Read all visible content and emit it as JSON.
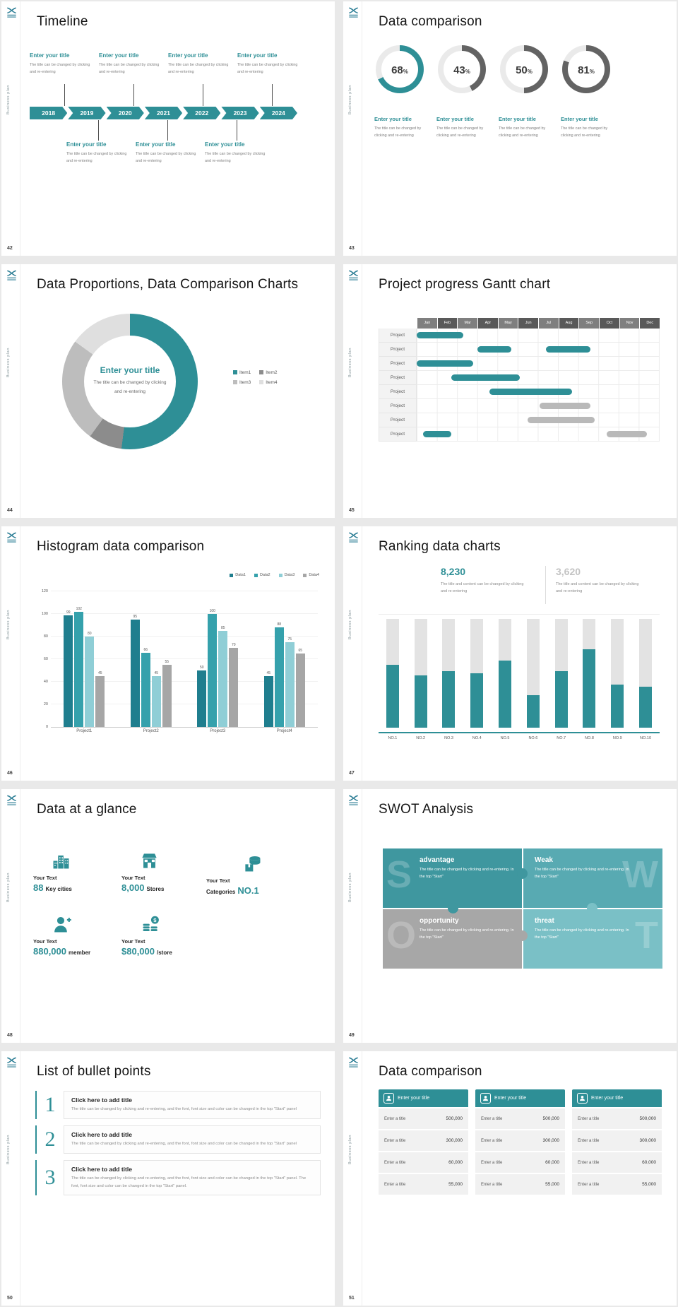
{
  "page": {
    "background": "#e9e9e9",
    "accent": "#2e8f96"
  },
  "branding": {
    "sidebar_text": "Business plan"
  },
  "common": {
    "entry_title": "Enter your title",
    "entry_body": "The title can be changed by clicking and re-entering"
  },
  "slides": [
    {
      "number": "42",
      "title": "Timeline",
      "years": [
        "2018",
        "2019",
        "2020",
        "2021",
        "2022",
        "2023",
        "2024"
      ],
      "top_entries": [
        {
          "title": "Enter your title",
          "body": "The title can be changed by clicking and re-entering"
        },
        {
          "title": "Enter your title",
          "body": "The title can be changed by clicking and re-entering"
        },
        {
          "title": "Enter your title",
          "body": "The title can be changed by clicking and re-entering"
        },
        {
          "title": "Enter your title",
          "body": "The title can be changed by clicking and re-entering"
        }
      ],
      "bottom_entries": [
        {
          "title": "Enter your title",
          "body": "The title can be changed by clicking and re-entering"
        },
        {
          "title": "Enter your title",
          "body": "The title can be changed by clicking and re-entering"
        },
        {
          "title": "Enter your title",
          "body": "The title can be changed by clicking and re-entering"
        }
      ]
    },
    {
      "number": "43",
      "title": "Data comparison",
      "stats": [
        {
          "percent": 68,
          "color": "#2e8f96",
          "title": "Enter your title",
          "body": "The title can be changed by clicking and re-entering"
        },
        {
          "percent": 43,
          "color": "#636363",
          "title": "Enter your title",
          "body": "The title can be changed by clicking and re-entering"
        },
        {
          "percent": 50,
          "color": "#636363",
          "title": "Enter your title",
          "body": "The title can be changed by clicking and re-entering"
        },
        {
          "percent": 81,
          "color": "#636363",
          "title": "Enter your title",
          "body": "The title can be changed by clicking and re-entering"
        }
      ]
    },
    {
      "number": "44",
      "title": "Data Proportions, Data Comparison Charts",
      "center_title": "Enter your title",
      "center_body": "The title can be changed by clicking and re-entering",
      "chart_data": {
        "type": "pie",
        "labels": [
          "Item1",
          "Item2",
          "Item3",
          "Item4"
        ],
        "values": [
          52,
          8,
          25,
          15
        ],
        "colors": [
          "#2e8f96",
          "#8c8c8c",
          "#bdbdbd",
          "#dfdfdf"
        ],
        "legend_position": "right"
      }
    },
    {
      "number": "45",
      "title": "Project progress Gantt chart",
      "chart_data": {
        "type": "gantt",
        "months": [
          "Jan",
          "Feb",
          "Mar",
          "Apr",
          "May",
          "Jun",
          "Jul",
          "Aug",
          "Sep",
          "Oct",
          "Nov",
          "Dec"
        ],
        "row_label": "Project",
        "rows": [
          {
            "bars": [
              {
                "start": 0,
                "end": 2.3,
                "color": "#2e8f96"
              }
            ]
          },
          {
            "bars": [
              {
                "start": 3,
                "end": 4.7,
                "color": "#2e8f96"
              },
              {
                "start": 6.4,
                "end": 8.6,
                "color": "#2e8f96"
              }
            ]
          },
          {
            "bars": [
              {
                "start": 0,
                "end": 2.8,
                "color": "#2e8f96"
              }
            ]
          },
          {
            "bars": [
              {
                "start": 1.7,
                "end": 5.1,
                "color": "#2e8f96"
              }
            ]
          },
          {
            "bars": [
              {
                "start": 3.6,
                "end": 7.7,
                "color": "#2e8f96"
              }
            ]
          },
          {
            "bars": [
              {
                "start": 6.1,
                "end": 8.6,
                "color": "#b9b9b9"
              }
            ]
          },
          {
            "bars": [
              {
                "start": 5.5,
                "end": 8.8,
                "color": "#b9b9b9"
              }
            ]
          },
          {
            "bars": [
              {
                "start": 0.3,
                "end": 1.7,
                "color": "#2e8f96"
              },
              {
                "start": 9.4,
                "end": 11.4,
                "color": "#b9b9b9"
              }
            ]
          }
        ]
      }
    },
    {
      "number": "46",
      "title": "Histogram data comparison",
      "chart_data": {
        "type": "bar",
        "categories": [
          "Project1",
          "Project2",
          "Project3",
          "Project4"
        ],
        "series": [
          {
            "name": "Data1",
            "color": "#1f7e8e",
            "values": [
              99,
              95,
              50,
              45
            ]
          },
          {
            "name": "Data2",
            "color": "#35a1ac",
            "values": [
              102,
              66,
              100,
              88
            ]
          },
          {
            "name": "Data3",
            "color": "#8fced6",
            "values": [
              80,
              45,
              85,
              75
            ]
          },
          {
            "name": "Data4",
            "color": "#a6a6a6",
            "values": [
              45,
              55,
              70,
              65
            ]
          }
        ],
        "ylim": [
          0,
          120
        ],
        "yticks": [
          0,
          20,
          40,
          60,
          80,
          100,
          120
        ],
        "legend_position": "top-right"
      }
    },
    {
      "number": "47",
      "title": "Ranking data charts",
      "stat_primary": {
        "value": "8,230",
        "body": "The title and content can be changed by clicking and re-entering"
      },
      "stat_secondary": {
        "value": "3,620",
        "body": "The title and content can be changed by clicking and re-entering"
      },
      "chart_data": {
        "type": "bar",
        "categories": [
          "NO.1",
          "NO.2",
          "NO.3",
          "NO.4",
          "NO.5",
          "NO.6",
          "NO.7",
          "NO.8",
          "NO.9",
          "NO.10"
        ],
        "values": [
          58,
          48,
          52,
          50,
          62,
          30,
          52,
          72,
          40,
          38
        ],
        "max": 100,
        "fill_color": "#2e8f96",
        "track_color": "#e3e3e3"
      }
    },
    {
      "number": "48",
      "title": "Data at a glance",
      "items": [
        {
          "icon": "city-buildings-icon",
          "label": "Your Text",
          "value": "88",
          "unit": "Key cities",
          "value_first": true
        },
        {
          "icon": "store-icon",
          "label": "Your Text",
          "value": "8,000",
          "unit": "Stores",
          "value_first": true
        },
        {
          "icon": "boxes-icon",
          "label": "Your Text",
          "value": "NO.1",
          "unit": "Categories",
          "value_first": false
        },
        {
          "icon": "member-plus-icon",
          "label": "Your Text",
          "value": "880,000",
          "unit": "member",
          "value_first": true
        },
        {
          "icon": "coins-icon",
          "label": "Your Text",
          "value": "$80,000",
          "unit": "/store",
          "value_first": true
        }
      ]
    },
    {
      "number": "49",
      "title": "SWOT Analysis",
      "quads": [
        {
          "letter": "S",
          "title": "advantage",
          "body": "The title can be changed by clicking and re-entering. In the top \"Start\"",
          "color": "#3f979f",
          "side": "left"
        },
        {
          "letter": "W",
          "title": "Weak",
          "body": "The title can be changed by clicking and re-entering. In the top \"Start\"",
          "color": "#58aab2",
          "side": "right"
        },
        {
          "letter": "O",
          "title": "opportunity",
          "body": "The title can be changed by clicking and re-entering. In the top \"Start\"",
          "color": "#a7a7a7",
          "side": "left"
        },
        {
          "letter": "T",
          "title": "threat",
          "body": "The title can be changed by clicking and re-entering. In the top \"Start\"",
          "color": "#7ac0c6",
          "side": "right"
        }
      ]
    },
    {
      "number": "50",
      "title": "List of bullet points",
      "items": [
        {
          "num": "1",
          "title": "Click here to add title",
          "body": "The title can be changed by clicking and re-entering, and the font, font size and color can be changed in the top \"Start\" panel"
        },
        {
          "num": "2",
          "title": "Click here to add title",
          "body": "The title can be changed by clicking and re-entering, and the font, font size and color can be changed in the top \"Start\" panel"
        },
        {
          "num": "3",
          "title": "Click here to add title",
          "body": "The title can be changed by clicking and re-entering, and the font, font size and color can be changed in the top \"Start\" panel. The font, font size and color can be changed in the top \"Start\" panel."
        }
      ]
    },
    {
      "number": "51",
      "title": "Data comparison",
      "cards": [
        {
          "title": "Enter your title",
          "rows": [
            {
              "label": "Enter a title",
              "value": "500,000"
            },
            {
              "label": "Enter a title",
              "value": "300,000"
            },
            {
              "label": "Enter a title",
              "value": "60,000"
            },
            {
              "label": "Enter a title",
              "value": "55,000"
            }
          ]
        },
        {
          "title": "Enter your title",
          "rows": [
            {
              "label": "Enter a title",
              "value": "500,000"
            },
            {
              "label": "Enter a title",
              "value": "300,000"
            },
            {
              "label": "Enter a title",
              "value": "60,000"
            },
            {
              "label": "Enter a title",
              "value": "55,000"
            }
          ]
        },
        {
          "title": "Enter your title",
          "rows": [
            {
              "label": "Enter a title",
              "value": "500,000"
            },
            {
              "label": "Enter a title",
              "value": "300,000"
            },
            {
              "label": "Enter a title",
              "value": "60,000"
            },
            {
              "label": "Enter a title",
              "value": "55,000"
            }
          ]
        }
      ]
    }
  ]
}
